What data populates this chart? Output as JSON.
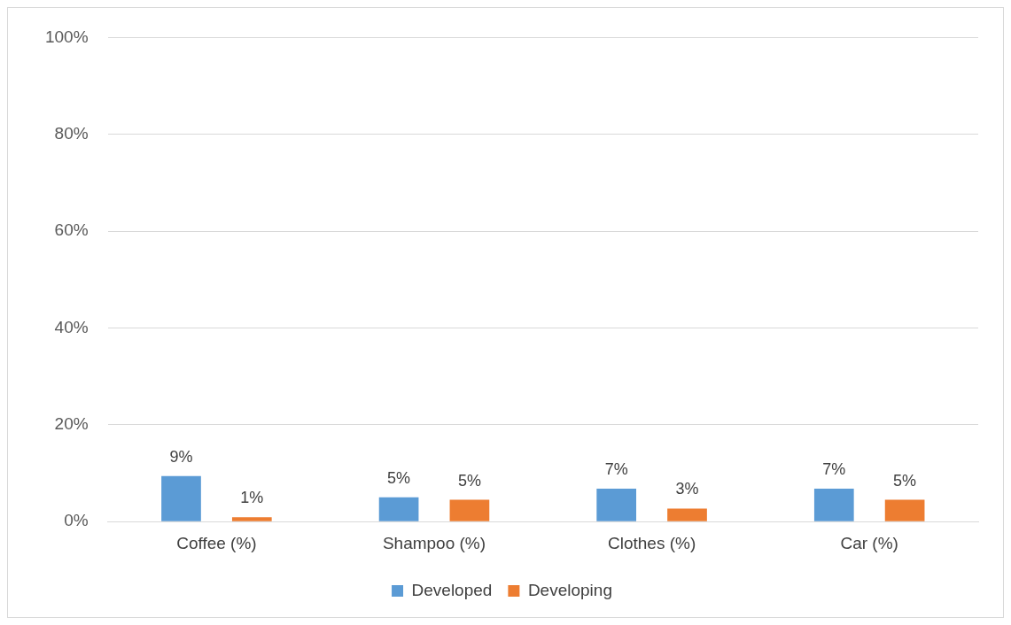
{
  "chart_data": {
    "type": "bar",
    "categories": [
      "Coffee (%)",
      "Shampoo (%)",
      "Clothes (%)",
      "Car (%)"
    ],
    "series": [
      {
        "name": "Developed",
        "color": "#5b9bd5",
        "values": [
          9.4,
          5,
          6.8,
          6.8
        ],
        "value_labels": [
          "9%",
          "5%",
          "7%",
          "7%"
        ]
      },
      {
        "name": "Developing",
        "color": "#ed7d31",
        "values": [
          0.9,
          4.5,
          2.7,
          4.5
        ],
        "value_labels": [
          "1%",
          "5%",
          "3%",
          "5%"
        ]
      }
    ],
    "ylim": [
      0,
      100
    ],
    "yticks": [
      {
        "value": 0,
        "label": "0%"
      },
      {
        "value": 20,
        "label": "20%"
      },
      {
        "value": 40,
        "label": "40%"
      },
      {
        "value": 60,
        "label": "60%"
      },
      {
        "value": 80,
        "label": "80%"
      },
      {
        "value": 100,
        "label": "100%"
      }
    ],
    "grid": "y",
    "legend": "bottom"
  }
}
